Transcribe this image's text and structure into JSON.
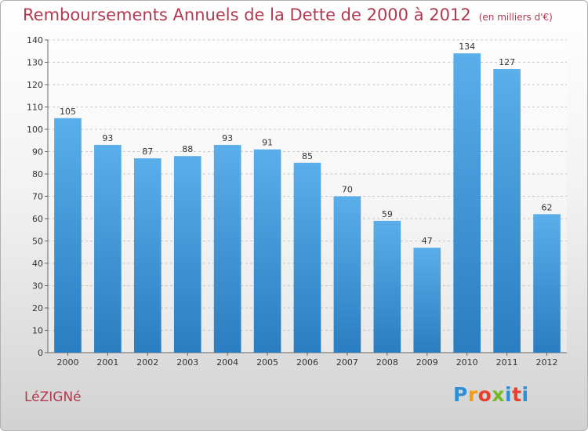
{
  "header": {
    "title": "Remboursements Annuels de la Dette de 2000 à 2012",
    "unit": "(en milliers d'€)"
  },
  "footer": {
    "place": "LéZIGNé",
    "logo_letters": [
      "P",
      "r",
      "o",
      "x",
      "i",
      "t",
      "i"
    ]
  },
  "colors": {
    "title": "#b03a50",
    "bar_top": "#5aaeea",
    "bar_bottom": "#2a7dc0"
  },
  "chart_data": {
    "type": "bar",
    "title": "Remboursements Annuels de la Dette de 2000 à 2012",
    "categories": [
      "2000",
      "2001",
      "2002",
      "2003",
      "2004",
      "2005",
      "2006",
      "2007",
      "2008",
      "2009",
      "2010",
      "2011",
      "2012"
    ],
    "values": [
      105,
      93,
      87,
      88,
      93,
      91,
      85,
      70,
      59,
      47,
      134,
      127,
      62
    ],
    "ylim": [
      0,
      140
    ],
    "yticks": [
      0,
      10,
      20,
      30,
      40,
      50,
      60,
      70,
      80,
      90,
      100,
      110,
      120,
      130,
      140
    ],
    "grid": true,
    "data_labels": true
  }
}
